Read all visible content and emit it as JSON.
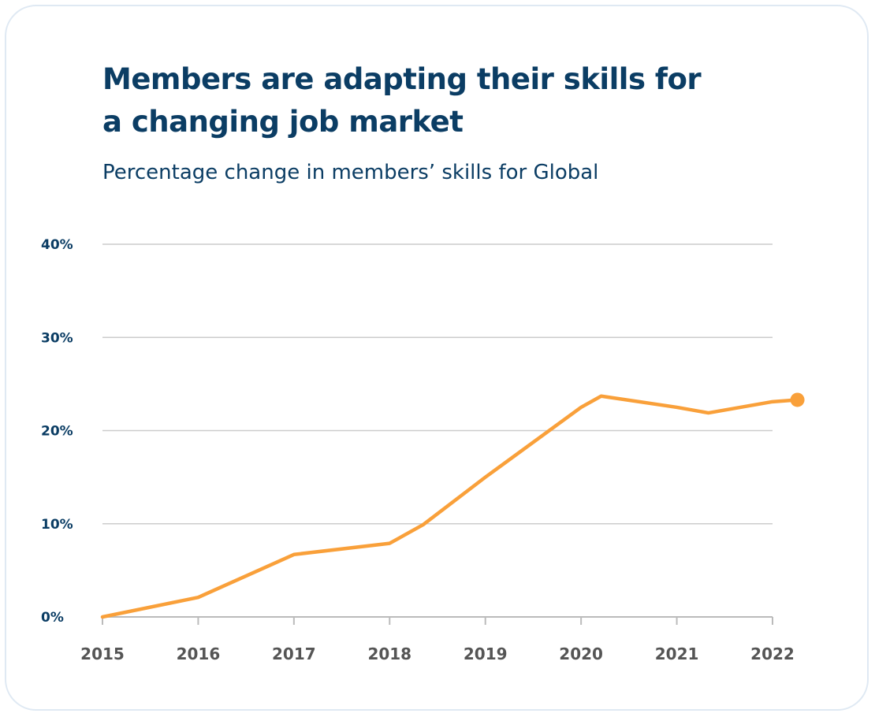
{
  "chart_data": {
    "type": "line",
    "title": "Members are adapting their skills for a changing job market",
    "subtitle": "Percentage change in members’ skills for Global",
    "xlabel": "",
    "ylabel": "",
    "x_ticks": [
      "2015",
      "2016",
      "2017",
      "2018",
      "2019",
      "2020",
      "2021",
      "2022"
    ],
    "y_ticks": [
      "0%",
      "10%",
      "20%",
      "30%",
      "40%"
    ],
    "xlim": [
      2015,
      2022.3
    ],
    "ylim": [
      0,
      40
    ],
    "grid": "horizontal",
    "series": [
      {
        "color": "#f9a03a",
        "end_marker": true,
        "points": [
          [
            2015,
            0
          ],
          [
            2016,
            2.1
          ],
          [
            2017,
            6.7
          ],
          [
            2018,
            7.9
          ],
          [
            2018.35,
            9.9
          ],
          [
            2019,
            15.0
          ],
          [
            2020,
            22.5
          ],
          [
            2020.21,
            23.7
          ],
          [
            2021,
            22.5
          ],
          [
            2021.33,
            21.9
          ],
          [
            2022,
            23.1
          ],
          [
            2022.26,
            23.3
          ]
        ]
      }
    ]
  },
  "colors": {
    "title": "#0b3d64",
    "grid": "#cccccc",
    "line": "#f9a03a"
  }
}
